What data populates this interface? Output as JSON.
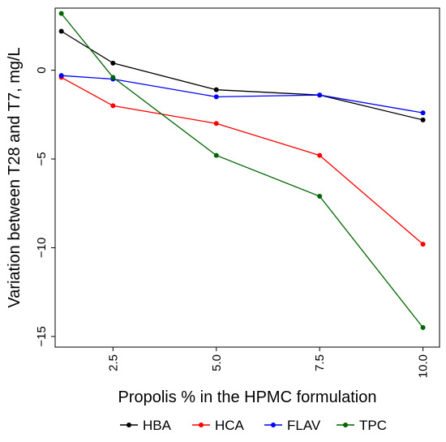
{
  "chart_data": {
    "type": "line",
    "title": "",
    "xlabel": "Propolis % in the HPMC formulation",
    "ylabel": "Variation between T28 and T7, mg/L",
    "x": [
      1.25,
      2.5,
      5.0,
      7.5,
      10.0
    ],
    "xticks": [
      2.5,
      5.0,
      7.5,
      10.0
    ],
    "xtick_labels": [
      "2.5",
      "5.0",
      "7.5",
      "10.0"
    ],
    "yticks": [
      0,
      -5,
      -10,
      -15
    ],
    "ytick_labels": [
      "0",
      "−5",
      "−10",
      "−15"
    ],
    "xlim": [
      1.1,
      10.4
    ],
    "ylim": [
      -15.6,
      3.5
    ],
    "grid": false,
    "legend_position": "bottom",
    "series": [
      {
        "name": "HBA",
        "color": "#000000",
        "values": [
          2.2,
          0.4,
          -1.1,
          -1.4,
          -2.8
        ]
      },
      {
        "name": "HCA",
        "color": "#ff0000",
        "values": [
          -0.4,
          -2.0,
          -3.0,
          -4.8,
          -9.8
        ]
      },
      {
        "name": "FLAV",
        "color": "#0000ff",
        "values": [
          -0.3,
          -0.5,
          -1.5,
          -1.4,
          -2.4
        ]
      },
      {
        "name": "TPC",
        "color": "#006400",
        "values": [
          3.2,
          -0.4,
          -4.8,
          -7.1,
          -14.5
        ]
      }
    ]
  }
}
